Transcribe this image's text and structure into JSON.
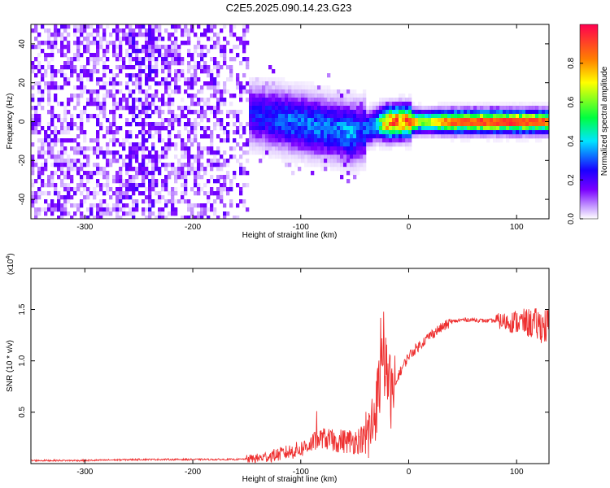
{
  "page_title": "C2E5.2025.090.14.23.G23",
  "chart_data": [
    {
      "type": "heatmap",
      "title": "C2E5.2025.090.14.23.G23",
      "xlabel": "Height of straight line (km)",
      "ylabel": "Frequency (Hz)",
      "xlim": [
        -350,
        130
      ],
      "ylim": [
        -50,
        50
      ],
      "xticks": [
        -300,
        -200,
        -100,
        0,
        100
      ],
      "xtick_labels": [
        "-300",
        "-200",
        "-100",
        "0",
        "100"
      ],
      "yticks": [
        -40,
        -20,
        0,
        20,
        40
      ],
      "ytick_labels": [
        "-40",
        "-20",
        "0",
        "20",
        "40"
      ],
      "colorbar": {
        "label": "Normalized spectral amplitude",
        "range": [
          0,
          1
        ],
        "ticks": [
          0.0,
          0.2,
          0.4,
          0.6,
          0.8
        ],
        "tick_labels": [
          "0.0",
          "0.2",
          "0.4",
          "0.6",
          "0.8"
        ],
        "colormap": [
          "#ffffff",
          "#c8a0ff",
          "#7a00ff",
          "#1a00ff",
          "#00e5ff",
          "#00ff40",
          "#ffff00",
          "#ff8000",
          "#ff0040"
        ]
      },
      "description_points": {
        "ridge_frequency_hz": [
          [
            -150,
            5
          ],
          [
            -130,
            3
          ],
          [
            -110,
            1
          ],
          [
            -90,
            -1
          ],
          [
            -70,
            -3
          ],
          [
            -55,
            -5
          ],
          [
            -45,
            -4
          ],
          [
            -30,
            0
          ],
          [
            -10,
            1
          ],
          [
            0,
            1
          ],
          [
            30,
            1
          ],
          [
            60,
            1
          ],
          [
            100,
            1
          ],
          [
            130,
            1
          ]
        ],
        "ridge_amplitude": [
          [
            -150,
            0.25
          ],
          [
            -130,
            0.3
          ],
          [
            -110,
            0.35
          ],
          [
            -90,
            0.35
          ],
          [
            -70,
            0.35
          ],
          [
            -55,
            0.4
          ],
          [
            -45,
            0.3
          ],
          [
            -30,
            0.45
          ],
          [
            -20,
            0.95
          ],
          [
            0,
            0.9
          ],
          [
            10,
            0.6
          ],
          [
            40,
            0.9
          ],
          [
            60,
            0.9
          ],
          [
            100,
            0.95
          ],
          [
            130,
            0.85
          ]
        ]
      },
      "grid": false
    },
    {
      "type": "line",
      "xlabel": "Height of straight line (km)",
      "ylabel": "SNR (10 * v/v)",
      "y_multiplier_label": "(x10",
      "y_multiplier_exp": "4",
      "y_multiplier_close": ")",
      "xlim": [
        -350,
        130
      ],
      "ylim": [
        0,
        1.9
      ],
      "xticks": [
        -300,
        -200,
        -100,
        0,
        100
      ],
      "xtick_labels": [
        "-300",
        "-200",
        "-100",
        "0",
        "100"
      ],
      "yticks": [
        0.5,
        1.0,
        1.5
      ],
      "ytick_labels": [
        "0.5",
        "1.0",
        "1.5"
      ],
      "color": "#ee3030",
      "series": [
        {
          "x": [
            -350,
            -300,
            -250,
            -200,
            -160,
            -140,
            -120,
            -100,
            -90,
            -80,
            -70,
            -60,
            -50,
            -40,
            -35,
            -30,
            -25,
            -20,
            -15,
            -10,
            -5,
            0,
            10,
            20,
            30,
            40,
            50,
            60,
            70,
            80,
            90,
            100,
            110,
            120,
            130
          ],
          "y": [
            0.03,
            0.03,
            0.04,
            0.04,
            0.04,
            0.05,
            0.09,
            0.14,
            0.2,
            0.25,
            0.22,
            0.22,
            0.22,
            0.25,
            0.32,
            0.6,
            0.9,
            0.9,
            0.6,
            0.85,
            0.95,
            1.05,
            1.15,
            1.25,
            1.32,
            1.38,
            1.4,
            1.4,
            1.39,
            1.39,
            1.38,
            1.38,
            1.37,
            1.35,
            1.33
          ]
        }
      ],
      "grid": false
    }
  ]
}
